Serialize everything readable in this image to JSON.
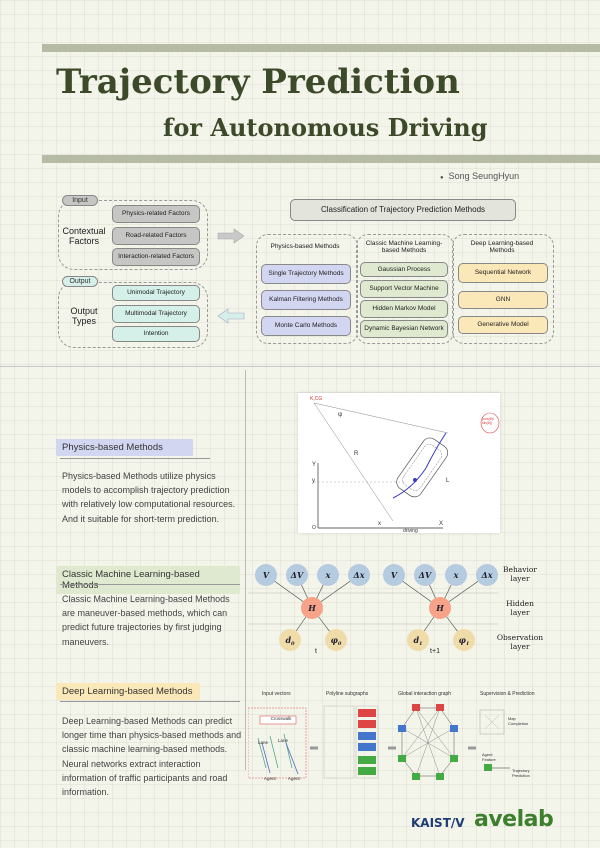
{
  "header": {
    "title": "Trajectory Prediction",
    "subtitle": "for  Autonomous Driving",
    "author": "Song SeungHyun"
  },
  "input": {
    "tag": "Input",
    "group": "Contextual Factors",
    "items": [
      "Physics-related Factors",
      "Road-related Factors",
      "Interaction-related Factors"
    ]
  },
  "output": {
    "tag": "Output",
    "group": "Output Types",
    "items": [
      "Unimodal Trajectory",
      "Multimodal Trajectory",
      "Intention"
    ]
  },
  "classification": {
    "title": "Classification of Trajectory Prediction Methods",
    "physics": {
      "heading": "Physics-based Methods",
      "items": [
        "Single Trajectory Methods",
        "Kalman Filtering Methods",
        "Monte Carlo Methods"
      ]
    },
    "ml": {
      "heading": "Classic Machine Learning-based Methods",
      "items": [
        "Gaussian Process",
        "Support Vector Machine",
        "Hidden Markov Model",
        "Dynamic Bayesian Network"
      ]
    },
    "dl": {
      "heading": "Deep Learning-based Methods",
      "items": [
        "Sequential Network",
        "GNN",
        "Generative Model"
      ]
    }
  },
  "sections": {
    "physics": {
      "heading": "Physics-based Methods",
      "body": "Physics-based Methods utilize physics models to accomplish trajectory prediction with relatively low computational resources. And it suitable for short-term prediction."
    },
    "ml": {
      "heading": "Classic Machine Learning-based Methods",
      "body": "Classic Machine Learning-based Methods are maneuver-based methods, which can predict future trajectories by first judging maneuvers."
    },
    "dl": {
      "heading": "Deep Learning-based Methods",
      "body": "Deep Learning-based Methods can predict longer time than physics-based methods and classic machine learning-based methods. Neural networks extract interaction information of traffic participants and road information."
    }
  },
  "physics_fig": {
    "k_cg": "K,CG",
    "y_axis": "Y",
    "x_axis": "X",
    "origin": "O",
    "psi": "ψ",
    "r_label": "R",
    "l_label": "L",
    "y_tick": "y",
    "x_tick": "x",
    "driving": "driving",
    "inset": "(cos(θ)/ sin(θ))"
  },
  "hmm_fig": {
    "nodes": [
      "V",
      "ΔV",
      "x",
      "Δx"
    ],
    "hidden": "H",
    "obs": [
      [
        "d",
        "0"
      ],
      [
        "φ",
        "0"
      ],
      [
        "d",
        "1"
      ],
      [
        "φ",
        "1"
      ]
    ],
    "times": [
      "t",
      "t+1"
    ],
    "layers": [
      "Behavior layer",
      "Hidden layer",
      "Observation layer"
    ]
  },
  "dl_fig": {
    "headers": [
      "Input vectors",
      "Polyline subgraphs",
      "Global interaction graph",
      "Supervision & Prediction"
    ],
    "crosswalk": "Crosswalk",
    "lane": "Lane",
    "agent": "Agent",
    "map_completion": "Map Completion",
    "agent_feature": "Agent Feature",
    "traj_pred": "Trajectory Prediction"
  },
  "logos": {
    "kaist": "KAIST",
    "avelab": "avelab"
  },
  "colors": {
    "accent": "#3c4a2a",
    "band": "#b5bba4",
    "section_head": "#d2d6f0",
    "section_ml": "#dfe9cf",
    "section_dl": "#fbe8b9"
  }
}
